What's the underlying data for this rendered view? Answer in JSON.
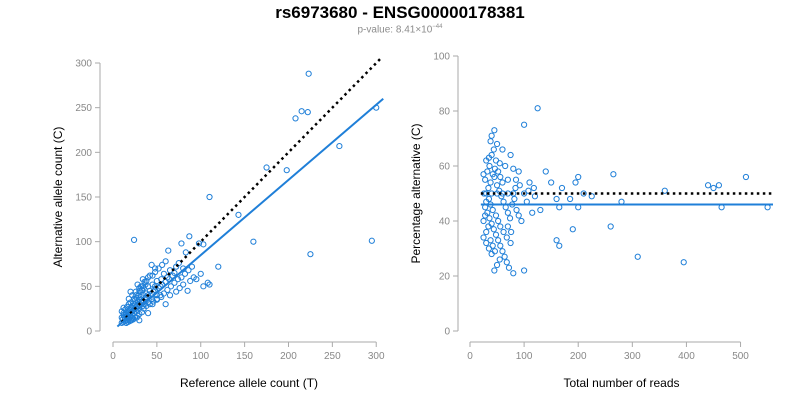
{
  "title": "rs6973680 - ENSG00000178381",
  "subtitle": {
    "prefix": "p-value: ",
    "mantissa": "8.41",
    "times": "×10",
    "exponent": "−44"
  },
  "colors": {
    "points": "#1f7fd8",
    "fit_line": "#1f7fd8",
    "reference_line": "#000000"
  },
  "chart_data": [
    {
      "type": "scatter",
      "xlabel": "Reference allele count (T)",
      "ylabel": "Alternative allele count (C)",
      "xlim": [
        0,
        310
      ],
      "ylim": [
        0,
        300
      ],
      "xticks": [
        0,
        50,
        100,
        150,
        200,
        250,
        300
      ],
      "yticks": [
        0,
        50,
        100,
        150,
        200,
        250,
        300
      ],
      "grid": false,
      "reference_line": {
        "style": "dotted",
        "from": [
          10,
          10
        ],
        "to": [
          305,
          305
        ]
      },
      "fit_line": {
        "style": "solid",
        "from": [
          5,
          5
        ],
        "to": [
          308,
          260
        ]
      },
      "points": [
        [
          223,
          288
        ],
        [
          208,
          238
        ],
        [
          215,
          246
        ],
        [
          222,
          245
        ],
        [
          300,
          250
        ],
        [
          258,
          207
        ],
        [
          175,
          183
        ],
        [
          198,
          180
        ],
        [
          110,
          150
        ],
        [
          143,
          130
        ],
        [
          160,
          100
        ],
        [
          295,
          101
        ],
        [
          225,
          86
        ],
        [
          24,
          102
        ],
        [
          98,
          98
        ],
        [
          103,
          97
        ],
        [
          87,
          106
        ],
        [
          78,
          98
        ],
        [
          83,
          88
        ],
        [
          63,
          90
        ],
        [
          120,
          72
        ],
        [
          108,
          54
        ],
        [
          103,
          50
        ],
        [
          110,
          52
        ],
        [
          75,
          76
        ],
        [
          72,
          72
        ],
        [
          80,
          70
        ],
        [
          65,
          68
        ],
        [
          58,
          64
        ],
        [
          62,
          60
        ],
        [
          55,
          58
        ],
        [
          50,
          56
        ],
        [
          48,
          50
        ],
        [
          45,
          52
        ],
        [
          40,
          50
        ],
        [
          42,
          45
        ],
        [
          38,
          42
        ],
        [
          35,
          40
        ],
        [
          32,
          38
        ],
        [
          30,
          35
        ],
        [
          28,
          33
        ],
        [
          25,
          30
        ],
        [
          22,
          28
        ],
        [
          20,
          25
        ],
        [
          18,
          22
        ],
        [
          15,
          20
        ],
        [
          12,
          18
        ],
        [
          10,
          15
        ],
        [
          14,
          14
        ],
        [
          16,
          16
        ],
        [
          18,
          18
        ],
        [
          20,
          20
        ],
        [
          22,
          22
        ],
        [
          24,
          24
        ],
        [
          26,
          26
        ],
        [
          28,
          28
        ],
        [
          30,
          30
        ],
        [
          32,
          32
        ],
        [
          34,
          34
        ],
        [
          36,
          36
        ],
        [
          38,
          38
        ],
        [
          40,
          40
        ],
        [
          44,
          42
        ],
        [
          46,
          44
        ],
        [
          48,
          46
        ],
        [
          52,
          48
        ],
        [
          54,
          50
        ],
        [
          56,
          52
        ],
        [
          60,
          55
        ],
        [
          64,
          58
        ],
        [
          68,
          62
        ],
        [
          70,
          65
        ],
        [
          50,
          40
        ],
        [
          44,
          36
        ],
        [
          40,
          32
        ],
        [
          36,
          30
        ],
        [
          34,
          28
        ],
        [
          30,
          26
        ],
        [
          28,
          24
        ],
        [
          26,
          22
        ],
        [
          24,
          20
        ],
        [
          22,
          18
        ],
        [
          20,
          16
        ],
        [
          18,
          14
        ],
        [
          16,
          12
        ],
        [
          14,
          11
        ],
        [
          12,
          10
        ],
        [
          10,
          9
        ],
        [
          11,
          13
        ],
        [
          13,
          16
        ],
        [
          15,
          18
        ],
        [
          17,
          21
        ],
        [
          19,
          24
        ],
        [
          21,
          27
        ],
        [
          23,
          31
        ],
        [
          25,
          34
        ],
        [
          27,
          37
        ],
        [
          29,
          40
        ],
        [
          31,
          44
        ],
        [
          33,
          46
        ],
        [
          35,
          48
        ],
        [
          37,
          52
        ],
        [
          20,
          32
        ],
        [
          24,
          36
        ],
        [
          26,
          40
        ],
        [
          30,
          45
        ],
        [
          32,
          50
        ],
        [
          36,
          55
        ],
        [
          40,
          60
        ],
        [
          45,
          62
        ],
        [
          48,
          66
        ],
        [
          52,
          70
        ],
        [
          56,
          74
        ],
        [
          60,
          78
        ],
        [
          45,
          30
        ],
        [
          50,
          35
        ],
        [
          55,
          38
        ],
        [
          58,
          42
        ],
        [
          62,
          46
        ],
        [
          66,
          50
        ],
        [
          70,
          54
        ],
        [
          74,
          58
        ],
        [
          78,
          60
        ],
        [
          82,
          64
        ],
        [
          86,
          68
        ],
        [
          90,
          72
        ],
        [
          35,
          25
        ],
        [
          38,
          28
        ],
        [
          42,
          30
        ],
        [
          46,
          33
        ],
        [
          50,
          36
        ],
        [
          54,
          40
        ],
        [
          20,
          12
        ],
        [
          22,
          14
        ],
        [
          25,
          15
        ],
        [
          28,
          17
        ],
        [
          30,
          19
        ],
        [
          33,
          21
        ],
        [
          15,
          9
        ],
        [
          17,
          10
        ],
        [
          19,
          11
        ],
        [
          21,
          12
        ],
        [
          23,
          13
        ],
        [
          27,
          15
        ],
        [
          12,
          20
        ],
        [
          14,
          24
        ],
        [
          16,
          27
        ],
        [
          18,
          30
        ],
        [
          10,
          22
        ],
        [
          12,
          26
        ],
        [
          85,
          45
        ],
        [
          60,
          30
        ],
        [
          40,
          20
        ],
        [
          30,
          12
        ],
        [
          95,
          58
        ],
        [
          100,
          64
        ],
        [
          48,
          70
        ],
        [
          42,
          62
        ],
        [
          38,
          56
        ],
        [
          34,
          50
        ],
        [
          30,
          48
        ],
        [
          26,
          44
        ],
        [
          22,
          40
        ],
        [
          18,
          36
        ],
        [
          20,
          44
        ],
        [
          28,
          52
        ],
        [
          34,
          58
        ],
        [
          44,
          74
        ],
        [
          65,
          40
        ],
        [
          72,
          44
        ],
        [
          76,
          48
        ],
        [
          80,
          52
        ],
        [
          88,
          56
        ],
        [
          92,
          60
        ]
      ]
    },
    {
      "type": "scatter",
      "xlabel": "Total number of reads",
      "ylabel": "Percentage alternative (C)",
      "xlim": [
        0,
        560
      ],
      "ylim": [
        0,
        100
      ],
      "xticks": [
        0,
        100,
        200,
        300,
        400,
        500
      ],
      "yticks": [
        0,
        20,
        40,
        60,
        80,
        100
      ],
      "grid": false,
      "reference_line": {
        "style": "dotted",
        "value": 50
      },
      "fit_line": {
        "style": "solid",
        "value": 46
      },
      "points": [
        [
          125,
          81
        ],
        [
          100,
          75
        ],
        [
          45,
          73
        ],
        [
          40,
          71
        ],
        [
          38,
          69
        ],
        [
          50,
          68
        ],
        [
          60,
          66
        ],
        [
          75,
          64
        ],
        [
          35,
          63
        ],
        [
          30,
          62
        ],
        [
          55,
          61
        ],
        [
          65,
          60
        ],
        [
          80,
          59
        ],
        [
          90,
          58
        ],
        [
          140,
          58
        ],
        [
          200,
          56
        ],
        [
          265,
          57
        ],
        [
          510,
          56
        ],
        [
          25,
          57
        ],
        [
          45,
          56
        ],
        [
          70,
          55
        ],
        [
          85,
          55
        ],
        [
          110,
          54
        ],
        [
          150,
          54
        ],
        [
          195,
          54
        ],
        [
          440,
          53
        ],
        [
          450,
          52
        ],
        [
          460,
          53
        ],
        [
          170,
          52
        ],
        [
          360,
          51
        ],
        [
          30,
          50
        ],
        [
          40,
          50
        ],
        [
          50,
          50
        ],
        [
          60,
          50
        ],
        [
          70,
          50
        ],
        [
          80,
          50
        ],
        [
          100,
          50
        ],
        [
          120,
          49
        ],
        [
          160,
          48
        ],
        [
          185,
          48
        ],
        [
          210,
          50
        ],
        [
          225,
          49
        ],
        [
          280,
          47
        ],
        [
          465,
          45
        ],
        [
          550,
          45
        ],
        [
          200,
          45
        ],
        [
          165,
          45
        ],
        [
          130,
          44
        ],
        [
          35,
          48
        ],
        [
          38,
          46
        ],
        [
          42,
          44
        ],
        [
          48,
          42
        ],
        [
          52,
          40
        ],
        [
          56,
          38
        ],
        [
          62,
          36
        ],
        [
          68,
          34
        ],
        [
          75,
          32
        ],
        [
          28,
          45
        ],
        [
          32,
          43
        ],
        [
          36,
          41
        ],
        [
          40,
          39
        ],
        [
          44,
          37
        ],
        [
          48,
          35
        ],
        [
          52,
          33
        ],
        [
          56,
          31
        ],
        [
          60,
          29
        ],
        [
          64,
          27
        ],
        [
          68,
          25
        ],
        [
          72,
          23
        ],
        [
          80,
          21
        ],
        [
          100,
          22
        ],
        [
          160,
          33
        ],
        [
          165,
          31
        ],
        [
          190,
          37
        ],
        [
          260,
          38
        ],
        [
          310,
          27
        ],
        [
          395,
          25
        ],
        [
          45,
          22
        ],
        [
          50,
          24
        ],
        [
          55,
          26
        ],
        [
          40,
          28
        ],
        [
          35,
          30
        ],
        [
          30,
          32
        ],
        [
          25,
          34
        ],
        [
          25,
          40
        ],
        [
          28,
          42
        ],
        [
          30,
          47
        ],
        [
          34,
          52
        ],
        [
          38,
          54
        ],
        [
          42,
          57
        ],
        [
          46,
          59
        ],
        [
          50,
          53
        ],
        [
          54,
          51
        ],
        [
          58,
          49
        ],
        [
          62,
          47
        ],
        [
          66,
          45
        ],
        [
          70,
          43
        ],
        [
          74,
          41
        ],
        [
          78,
          46
        ],
        [
          82,
          48
        ],
        [
          86,
          44
        ],
        [
          90,
          42
        ],
        [
          95,
          40
        ],
        [
          105,
          47
        ],
        [
          115,
          43
        ],
        [
          28,
          55
        ],
        [
          32,
          58
        ],
        [
          36,
          60
        ],
        [
          40,
          64
        ],
        [
          44,
          66
        ],
        [
          48,
          62
        ],
        [
          52,
          58
        ],
        [
          56,
          56
        ],
        [
          60,
          54
        ],
        [
          26,
          50
        ],
        [
          30,
          36
        ],
        [
          34,
          38
        ],
        [
          38,
          33
        ],
        [
          42,
          31
        ],
        [
          46,
          29
        ],
        [
          70,
          38
        ],
        [
          76,
          36
        ],
        [
          84,
          52
        ],
        [
          92,
          53
        ],
        [
          108,
          51
        ],
        [
          118,
          52
        ]
      ]
    }
  ]
}
